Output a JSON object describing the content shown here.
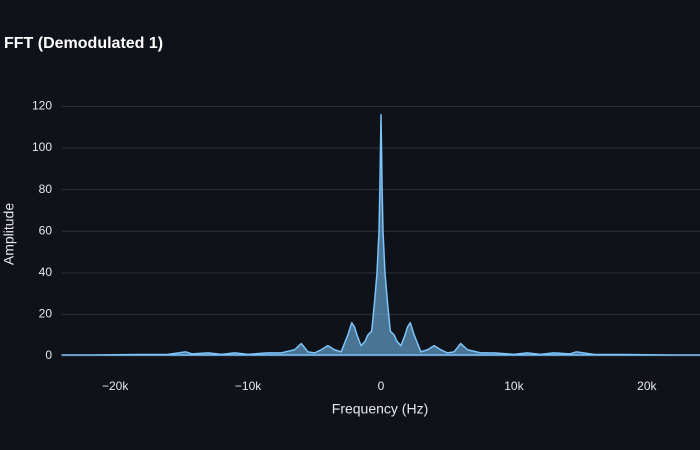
{
  "chart_data": {
    "type": "area",
    "title": "FFT (Demodulated 1)",
    "x_label": "Frequency (Hz)",
    "y_label": "Amplitude",
    "xlim": [
      -24000,
      24000
    ],
    "ylim": [
      0,
      126
    ],
    "xticks": [
      {
        "value": -20000,
        "label": "−20k"
      },
      {
        "value": -10000,
        "label": "−10k"
      },
      0,
      {
        "value": 10000,
        "label": "10k"
      },
      {
        "value": 20000,
        "label": "20k"
      }
    ],
    "yticks": [
      0,
      20,
      40,
      60,
      80,
      100,
      120
    ],
    "grid": true,
    "series": [
      {
        "color": "#7cc4fa",
        "x": [
          -24000,
          -22000,
          -20000,
          -18000,
          -16000,
          -14700,
          -14200,
          -13000,
          -12000,
          -11000,
          -10000,
          -8500,
          -7500,
          -6500,
          -6000,
          -5500,
          -5000,
          -4500,
          -4000,
          -3500,
          -3000,
          -2500,
          -2200,
          -2000,
          -1800,
          -1500,
          -1200,
          -1000,
          -700,
          -500,
          -300,
          -150,
          -80,
          0,
          80,
          150,
          300,
          500,
          700,
          1000,
          1200,
          1500,
          1800,
          2000,
          2200,
          2500,
          3000,
          3500,
          4000,
          4500,
          5000,
          5500,
          6000,
          6500,
          7500,
          8500,
          10000,
          11000,
          12000,
          13000,
          14200,
          14700,
          16000,
          18000,
          20000,
          22000,
          24000
        ],
        "values": [
          0.5,
          0.5,
          0.6,
          0.7,
          0.8,
          2,
          1,
          1.5,
          0.8,
          1.5,
          0.8,
          1.5,
          1.5,
          3,
          6,
          2,
          1.5,
          3,
          5,
          3,
          2,
          10,
          16,
          14,
          10,
          5,
          7,
          10,
          12,
          25,
          40,
          60,
          82,
          116,
          82,
          60,
          40,
          25,
          12,
          10,
          7,
          5,
          10,
          14,
          16,
          10,
          2,
          3,
          5,
          3,
          1.5,
          2,
          6,
          3,
          1.5,
          1.5,
          0.8,
          1.5,
          0.8,
          1.5,
          1,
          2,
          0.8,
          0.7,
          0.6,
          0.5,
          0.5
        ]
      }
    ]
  }
}
